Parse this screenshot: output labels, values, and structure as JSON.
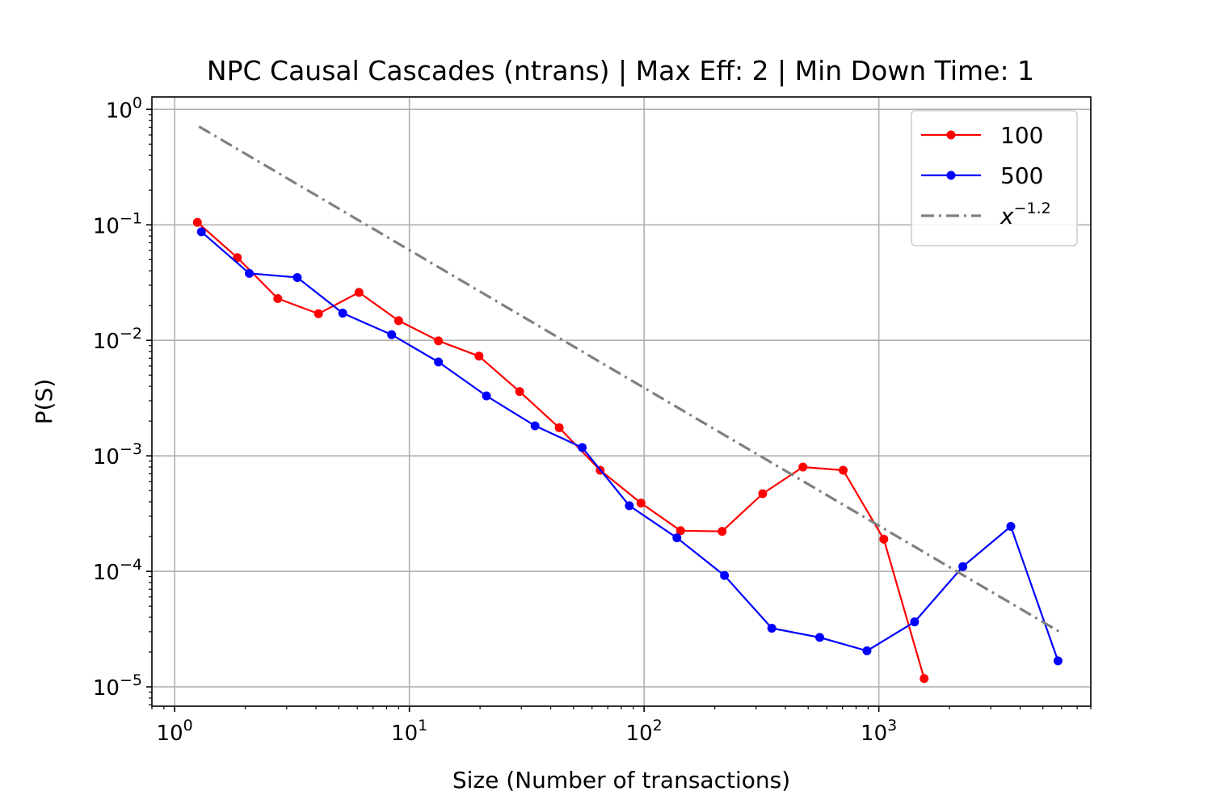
{
  "chart_data": {
    "type": "line",
    "title": "NPC Causal Cascades (ntrans) | Max Eff: 2 | Min Down Time: 1",
    "xlabel": "Size (Number of transactions)",
    "ylabel": "P(S)",
    "xscale": "log",
    "yscale": "log",
    "xlim": [
      0.8,
      8000
    ],
    "ylim": [
      6.8e-06,
      1.28
    ],
    "grid": true,
    "legend_position": "top-right",
    "x_ticks": [
      {
        "base": "10",
        "exp": "0",
        "value": 1
      },
      {
        "base": "10",
        "exp": "1",
        "value": 10
      },
      {
        "base": "10",
        "exp": "2",
        "value": 100
      },
      {
        "base": "10",
        "exp": "3",
        "value": 1000
      }
    ],
    "y_ticks": [
      {
        "base": "10",
        "exp": "0",
        "value": 1
      },
      {
        "base": "10",
        "exp": "−1",
        "value": 0.1
      },
      {
        "base": "10",
        "exp": "−2",
        "value": 0.01
      },
      {
        "base": "10",
        "exp": "−3",
        "value": 0.001
      },
      {
        "base": "10",
        "exp": "−4",
        "value": 0.0001
      },
      {
        "base": "10",
        "exp": "−5",
        "value": 1e-05
      }
    ],
    "series": [
      {
        "name": "100",
        "color": "#ff0000",
        "marker": "circle",
        "x": [
          1.25,
          1.85,
          2.75,
          4.1,
          6.1,
          9.0,
          13.3,
          19.8,
          29.5,
          43.5,
          65,
          97,
          143,
          215,
          320,
          475,
          705,
          1050,
          1560
        ],
        "y": [
          0.105,
          0.052,
          0.023,
          0.017,
          0.026,
          0.0148,
          0.0099,
          0.0073,
          0.0036,
          0.00175,
          0.00075,
          0.00039,
          0.000225,
          0.000222,
          0.00047,
          0.0008,
          0.00075,
          0.00019,
          1.18e-05
        ]
      },
      {
        "name": "500",
        "color": "#0000ff",
        "marker": "circle",
        "x": [
          1.3,
          2.08,
          3.33,
          5.2,
          8.4,
          13.3,
          21.3,
          34.3,
          54.5,
          86.5,
          138,
          220,
          350,
          560,
          890,
          1420,
          2280,
          3650,
          5800
        ],
        "y": [
          0.087,
          0.038,
          0.035,
          0.0172,
          0.0112,
          0.0065,
          0.0033,
          0.00182,
          0.00118,
          0.00037,
          0.000195,
          9.2e-05,
          3.22e-05,
          2.68e-05,
          2.05e-05,
          3.65e-05,
          0.00011,
          0.000245,
          1.68e-05
        ]
      },
      {
        "name": "x",
        "name_sup": "−1.2",
        "color": "#808080",
        "style": "dash-dot",
        "exponent": -1.2,
        "x": [
          1.27,
          5850
        ],
        "y": [
          0.71,
          3.02e-05
        ]
      }
    ]
  }
}
